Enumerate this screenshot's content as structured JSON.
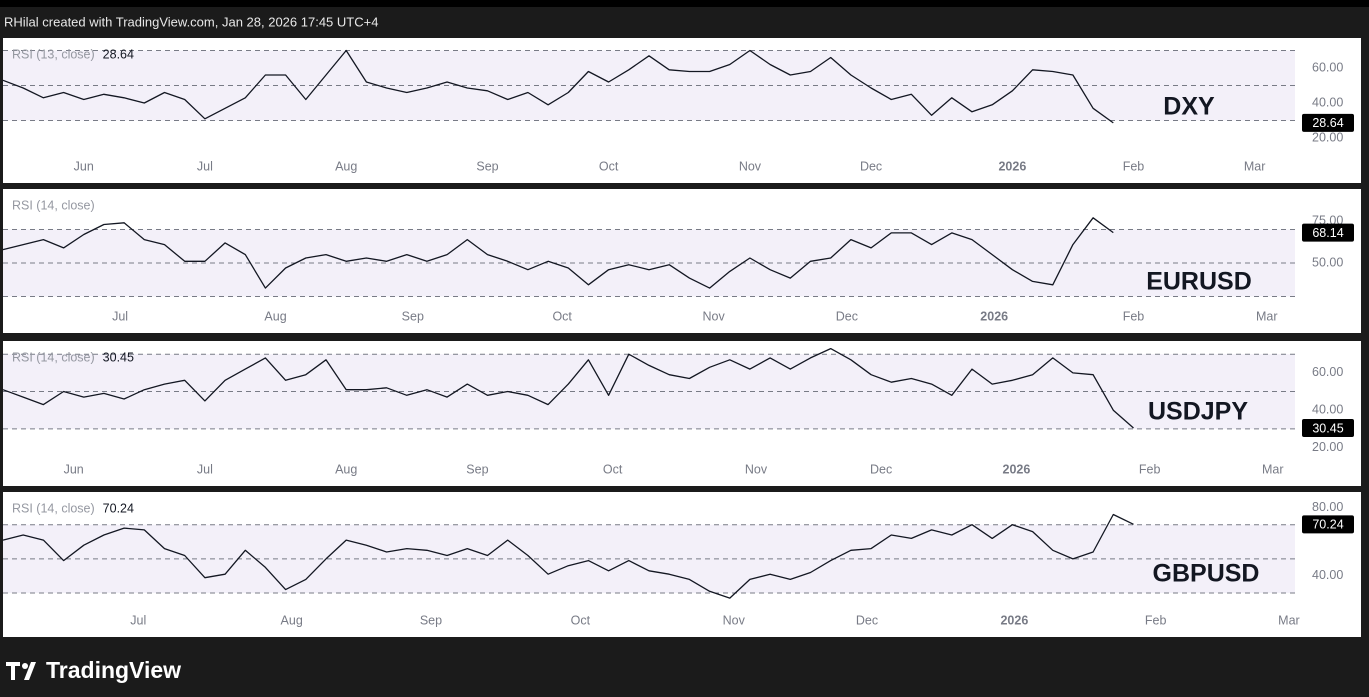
{
  "header": "RHilal created with TradingView.com, Jan 28, 2026 17:45 UTC+4",
  "footer": "TradingView",
  "chart_data": [
    {
      "type": "line",
      "indicator": "RSI (13, close)",
      "header_value": true,
      "symbol": "DXY",
      "color": "#131722",
      "values": [
        53,
        48.6,
        43,
        46,
        42,
        45,
        43,
        40,
        46,
        42,
        31,
        37,
        43,
        56,
        56,
        42,
        56,
        70,
        52,
        48.6,
        46,
        48.6,
        52,
        48.6,
        47,
        42,
        46,
        39,
        46,
        58,
        52,
        59,
        67,
        59,
        58,
        58,
        62,
        70,
        62,
        56,
        58,
        66,
        56,
        48.6,
        42,
        45,
        33,
        43,
        35,
        39,
        47,
        59,
        58,
        56,
        37,
        28.64
      ],
      "xlim": [
        0,
        64
      ],
      "xticks": [
        {
          "value": 4,
          "label": "Jun"
        },
        {
          "value": 10,
          "label": "Jul"
        },
        {
          "value": 17,
          "label": "Aug"
        },
        {
          "value": 24,
          "label": "Sep"
        },
        {
          "value": 30,
          "label": "Oct"
        },
        {
          "value": 37,
          "label": "Nov"
        },
        {
          "value": 43,
          "label": "Dec"
        },
        {
          "value": 50,
          "label": "2026"
        },
        {
          "value": 56,
          "label": "Feb"
        },
        {
          "value": 62,
          "label": "Mar"
        }
      ],
      "ylim": [
        -4,
        76
      ],
      "yticks": [
        {
          "value": 20,
          "label": "20.00"
        },
        {
          "value": 40,
          "label": "40.00"
        },
        {
          "value": 60,
          "label": "60.00"
        }
      ],
      "bands": [
        30,
        50,
        70
      ]
    },
    {
      "type": "line",
      "indicator": "RSI (14, close)",
      "header_value": false,
      "symbol": "EURUSD",
      "color": "#131722",
      "values": [
        58,
        61,
        64,
        59,
        67,
        73,
        74,
        64,
        61,
        51,
        51,
        62,
        55,
        35,
        47,
        53,
        55,
        51,
        53,
        51,
        55,
        51,
        55,
        64,
        55,
        51,
        46,
        51,
        47,
        37,
        46,
        49,
        46,
        49,
        41,
        35,
        45,
        53,
        46,
        41,
        51,
        53,
        64,
        59,
        68,
        68,
        61,
        68,
        64,
        55,
        46,
        39,
        37,
        61,
        77,
        68.14
      ],
      "xlim": [
        0,
        64
      ],
      "xticks": [
        {
          "value": 5.8,
          "label": "Jul"
        },
        {
          "value": 13.5,
          "label": "Aug"
        },
        {
          "value": 20.3,
          "label": "Sep"
        },
        {
          "value": 27.7,
          "label": "Oct"
        },
        {
          "value": 35.2,
          "label": "Nov"
        },
        {
          "value": 41.8,
          "label": "Dec"
        },
        {
          "value": 49.1,
          "label": "2026"
        },
        {
          "value": 56,
          "label": "Feb"
        },
        {
          "value": 62.6,
          "label": "Mar"
        }
      ],
      "ylim": [
        10,
        93
      ],
      "yticks": [
        {
          "value": 50,
          "label": "50.00"
        },
        {
          "value": 75,
          "label": "75.00"
        }
      ],
      "bands": [
        30,
        50,
        70
      ]
    },
    {
      "type": "line",
      "indicator": "RSI (14, close)",
      "header_value": true,
      "symbol": "USDJPY",
      "color": "#131722",
      "values": [
        51,
        47,
        43,
        50,
        47,
        49,
        46,
        51,
        54,
        56,
        45,
        56,
        62,
        68,
        56,
        59,
        67,
        51,
        51,
        52,
        48,
        51,
        47,
        54,
        48,
        50,
        48,
        43,
        54,
        67,
        48,
        70,
        64,
        59,
        57,
        63,
        67,
        62,
        68,
        62,
        68,
        73,
        67,
        59,
        55,
        57,
        54,
        48,
        62,
        54,
        56,
        59,
        68,
        60,
        59,
        40,
        30.45
      ],
      "xlim": [
        0,
        64
      ],
      "xticks": [
        {
          "value": 3.5,
          "label": "Jun"
        },
        {
          "value": 10,
          "label": "Jul"
        },
        {
          "value": 17,
          "label": "Aug"
        },
        {
          "value": 23.5,
          "label": "Sep"
        },
        {
          "value": 30.2,
          "label": "Oct"
        },
        {
          "value": 37.3,
          "label": "Nov"
        },
        {
          "value": 43.5,
          "label": "Dec"
        },
        {
          "value": 50.2,
          "label": "2026"
        },
        {
          "value": 56.8,
          "label": "Feb"
        },
        {
          "value": 62.9,
          "label": "Mar"
        }
      ],
      "ylim": [
        1,
        76
      ],
      "yticks": [
        {
          "value": 20,
          "label": "20.00"
        },
        {
          "value": 40,
          "label": "40.00"
        },
        {
          "value": 60,
          "label": "60.00"
        }
      ],
      "bands": [
        30,
        50,
        70
      ]
    },
    {
      "type": "line",
      "indicator": "RSI (14, close)",
      "header_value": true,
      "symbol": "GBPUSD",
      "color": "#131722",
      "values": [
        61,
        64,
        61,
        49,
        58,
        64,
        68,
        67,
        56,
        52,
        39,
        41,
        55,
        45,
        32,
        38,
        50,
        61,
        58,
        54,
        56,
        55,
        52,
        56,
        52,
        61,
        52,
        41,
        46,
        49,
        43,
        49,
        43,
        41,
        38,
        31,
        27,
        38,
        41,
        38,
        42,
        49,
        55,
        56,
        64,
        62,
        67,
        64,
        70,
        62,
        70,
        66,
        55,
        50,
        54,
        76,
        70.24
      ],
      "xlim": [
        0,
        64
      ],
      "xticks": [
        {
          "value": 6.7,
          "label": "Jul"
        },
        {
          "value": 14.3,
          "label": "Aug"
        },
        {
          "value": 21.2,
          "label": "Sep"
        },
        {
          "value": 28.6,
          "label": "Oct"
        },
        {
          "value": 36.2,
          "label": "Nov"
        },
        {
          "value": 42.8,
          "label": "Dec"
        },
        {
          "value": 50.1,
          "label": "2026"
        },
        {
          "value": 57.1,
          "label": "Feb"
        },
        {
          "value": 63.7,
          "label": "Mar"
        }
      ],
      "ylim": [
        6,
        88
      ],
      "yticks": [
        {
          "value": 40,
          "label": "40.00"
        },
        {
          "value": 80,
          "label": "80.00"
        }
      ],
      "bands": [
        30,
        50,
        70
      ]
    }
  ]
}
